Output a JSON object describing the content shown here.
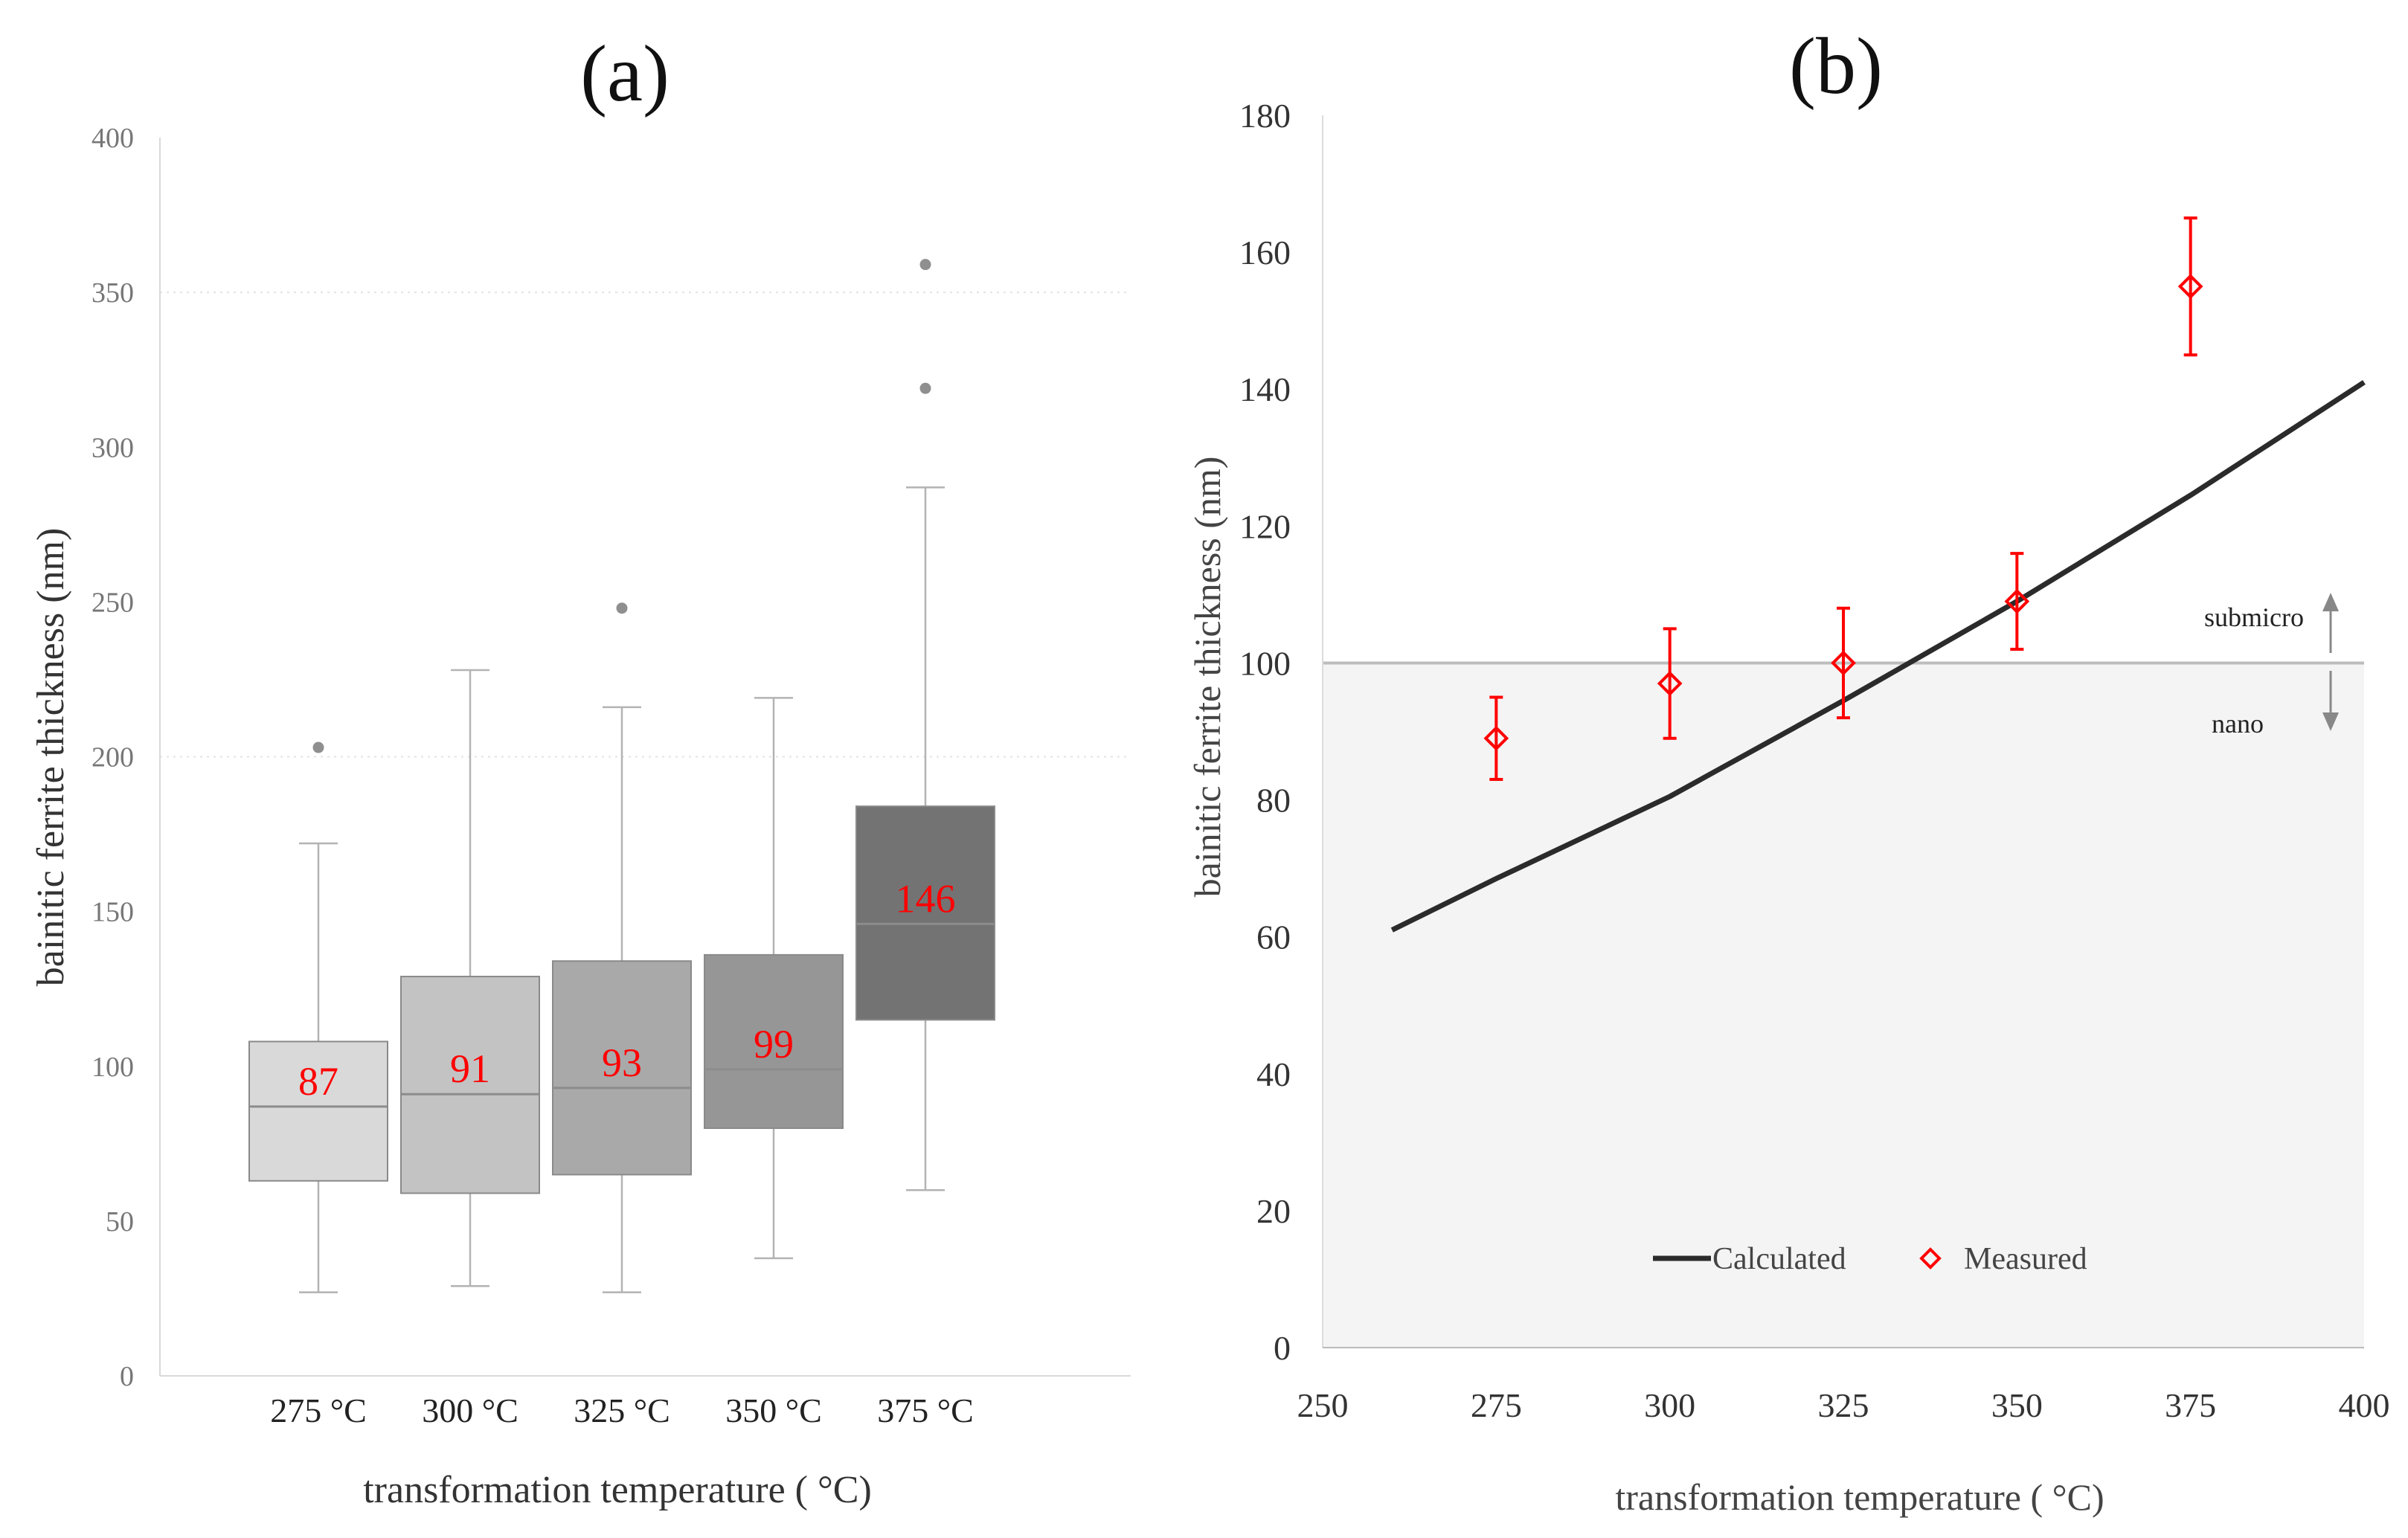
{
  "chart_data": [
    {
      "id": "a",
      "type": "boxplot",
      "panel_label": "(a)",
      "xlabel": "transformation temperature ( °C)",
      "ylabel": "bainitic ferrite thickness (nm)",
      "ylim": [
        0,
        400
      ],
      "yticks": [
        0,
        50,
        100,
        150,
        200,
        250,
        300,
        350,
        400
      ],
      "grid": "dotted at 200 and 350",
      "categories": [
        "275 °C",
        "300 °C",
        "325 °C",
        "350 °C",
        "375 °C"
      ],
      "median_labels": [
        "87",
        "91",
        "93",
        "99",
        "146"
      ],
      "boxes": [
        {
          "min": 27,
          "q1": 63,
          "median": 87,
          "q3": 108,
          "max": 172,
          "outliers": [
            203
          ],
          "fill": "#d9d9d9"
        },
        {
          "min": 29,
          "q1": 59,
          "median": 91,
          "q3": 129,
          "max": 228,
          "outliers": [],
          "fill": "#c3c3c3"
        },
        {
          "min": 27,
          "q1": 65,
          "median": 93,
          "q3": 134,
          "max": 216,
          "outliers": [
            248
          ],
          "fill": "#a9a9a9"
        },
        {
          "min": 38,
          "q1": 80,
          "median": 99,
          "q3": 136,
          "max": 219,
          "outliers": [],
          "fill": "#969696"
        },
        {
          "min": 60,
          "q1": 115,
          "median": 146,
          "q3": 184,
          "max": 287,
          "outliers": [
            319,
            359
          ],
          "fill": "#737373"
        }
      ]
    },
    {
      "id": "b",
      "type": "line+scatter",
      "panel_label": "(b)",
      "xlabel": "transformation temperature ( °C)",
      "ylabel": "bainitic ferrite thickness (nm)",
      "xlim": [
        250,
        400
      ],
      "ylim": [
        0,
        180
      ],
      "xticks": [
        250,
        275,
        300,
        325,
        350,
        375,
        400
      ],
      "yticks": [
        0,
        20,
        40,
        60,
        80,
        100,
        120,
        140,
        160,
        180
      ],
      "threshold": 100,
      "region_labels": {
        "upper": "submicro",
        "lower": "nano"
      },
      "series": [
        {
          "name": "Calculated",
          "kind": "line",
          "color": "#2b2b2b",
          "x": [
            260,
            275,
            300,
            325,
            350,
            375,
            400
          ],
          "y": [
            61,
            68.5,
            80.5,
            94.5,
            109,
            124.5,
            141
          ]
        },
        {
          "name": "Measured",
          "kind": "scatter",
          "marker": "diamond",
          "color": "#ff0000",
          "x": [
            275,
            300,
            325,
            350,
            375
          ],
          "y": [
            89,
            97,
            100,
            109,
            155
          ],
          "error": [
            6,
            8,
            8,
            7,
            10
          ]
        }
      ]
    }
  ]
}
